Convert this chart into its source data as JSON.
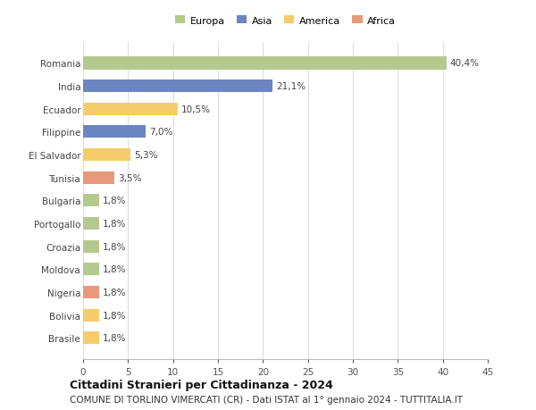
{
  "categories": [
    "Romania",
    "India",
    "Ecuador",
    "Filippine",
    "El Salvador",
    "Tunisia",
    "Bulgaria",
    "Portogallo",
    "Croazia",
    "Moldova",
    "Nigeria",
    "Bolivia",
    "Brasile"
  ],
  "values": [
    40.4,
    21.1,
    10.5,
    7.0,
    5.3,
    3.5,
    1.8,
    1.8,
    1.8,
    1.8,
    1.8,
    1.8,
    1.8
  ],
  "labels": [
    "40,4%",
    "21,1%",
    "10,5%",
    "7,0%",
    "5,3%",
    "3,5%",
    "1,8%",
    "1,8%",
    "1,8%",
    "1,8%",
    "1,8%",
    "1,8%",
    "1,8%"
  ],
  "colors": [
    "#b5c98e",
    "#6b85c0",
    "#f5cc6a",
    "#6b85c0",
    "#f5cc6a",
    "#e8997a",
    "#b5c98e",
    "#b5c98e",
    "#b5c98e",
    "#b5c98e",
    "#e8997a",
    "#f5cc6a",
    "#f5cc6a"
  ],
  "legend_labels": [
    "Europa",
    "Asia",
    "America",
    "Africa"
  ],
  "legend_colors": [
    "#b5c98e",
    "#6b85c0",
    "#f5cc6a",
    "#e8997a"
  ],
  "xlim": [
    0,
    45
  ],
  "xticks": [
    0,
    5,
    10,
    15,
    20,
    25,
    30,
    35,
    40,
    45
  ],
  "title": "Cittadini Stranieri per Cittadinanza - 2024",
  "subtitle": "COMUNE DI TORLINO VIMERCATI (CR) - Dati ISTAT al 1° gennaio 2024 - TUTTITALIA.IT",
  "bg_color": "#ffffff",
  "bar_height": 0.55,
  "title_fontsize": 9,
  "subtitle_fontsize": 7.5,
  "label_fontsize": 7.5,
  "tick_fontsize": 7.5,
  "legend_fontsize": 8
}
